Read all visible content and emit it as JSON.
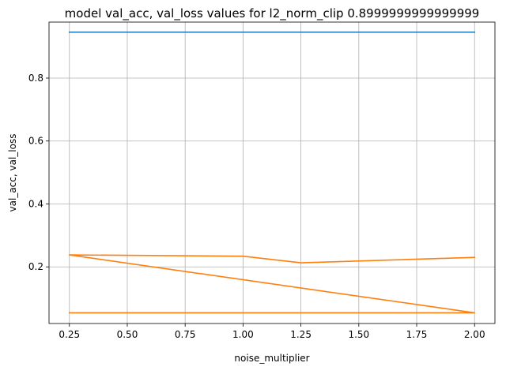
{
  "chart_data": {
    "type": "line",
    "title": "model val_acc, val_loss values for l2_norm_clip 0.8999999999999999",
    "xlabel": "noise_multiplier",
    "ylabel": "val_acc, val_loss",
    "xlim": [
      0.162,
      2.088
    ],
    "ylim": [
      0.02,
      0.978
    ],
    "grid": true,
    "x_ticks": [
      0.25,
      0.5,
      0.75,
      1.0,
      1.25,
      1.5,
      1.75,
      2.0
    ],
    "x_tick_labels": [
      "0.25",
      "0.50",
      "0.75",
      "1.00",
      "1.25",
      "1.50",
      "1.75",
      "2.00"
    ],
    "y_ticks": [
      0.2,
      0.4,
      0.6,
      0.8
    ],
    "y_tick_labels": [
      "0.2",
      "0.4",
      "0.6",
      "0.8"
    ],
    "series": [
      {
        "color": "#1f77b4",
        "x": [
          0.25,
          2.0
        ],
        "y": [
          0.946,
          0.946
        ]
      },
      {
        "color": "#ff7f0e",
        "x": [
          0.25,
          2.0,
          0.25,
          1.0,
          1.25,
          2.0
        ],
        "y": [
          0.054,
          0.054,
          0.238,
          0.234,
          0.213,
          0.23
        ]
      }
    ]
  }
}
